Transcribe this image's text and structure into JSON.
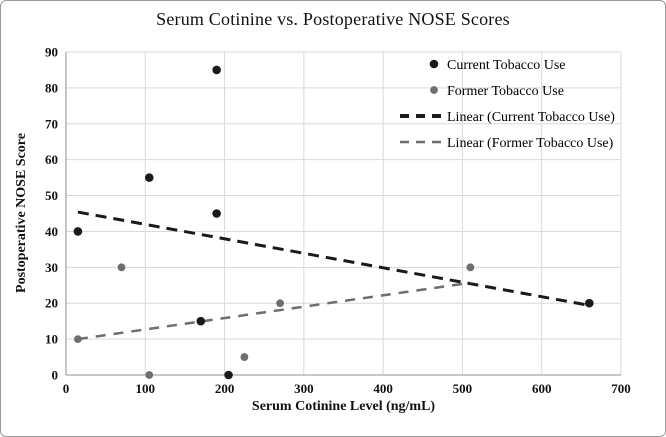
{
  "chart_data": {
    "type": "scatter",
    "title": "Serum Cotinine vs. Postoperative NOSE Scores",
    "xlabel": "Serum Cotinine Level (ng/mL)",
    "ylabel": "Postoperative NOSE Score",
    "xlim": [
      0,
      700
    ],
    "ylim": [
      0,
      90
    ],
    "xticks": [
      0,
      100,
      200,
      300,
      400,
      500,
      600,
      700
    ],
    "yticks": [
      0,
      10,
      20,
      30,
      40,
      50,
      60,
      70,
      80,
      90
    ],
    "grid": "both",
    "legend_position": "top-right-inside",
    "styles": {
      "gridline_color": "#d9d9d9",
      "axis_color": "#a6a6a6",
      "current_color": "#1a1a1a",
      "former_color": "#6e6e6e",
      "text_color": "#111111"
    },
    "series": [
      {
        "name": "Current Tobacco Use",
        "kind": "scatter",
        "color": "#1a1a1a",
        "marker": "circle",
        "points": [
          [
            15,
            40
          ],
          [
            105,
            55
          ],
          [
            170,
            15
          ],
          [
            190,
            85
          ],
          [
            190,
            45
          ],
          [
            205,
            0
          ],
          [
            660,
            20
          ]
        ]
      },
      {
        "name": "Former Tobacco Use",
        "kind": "scatter",
        "color": "#6e6e6e",
        "marker": "circle",
        "points": [
          [
            15,
            10
          ],
          [
            70,
            30
          ],
          [
            105,
            0
          ],
          [
            225,
            5
          ],
          [
            270,
            20
          ],
          [
            510,
            30
          ]
        ]
      },
      {
        "name": "Linear (Current Tobacco Use)",
        "kind": "trendline",
        "color": "#1a1a1a",
        "dashed": true,
        "points": [
          [
            15,
            45.4
          ],
          [
            660,
            19.4
          ]
        ]
      },
      {
        "name": "Linear (Former Tobacco Use)",
        "kind": "trendline",
        "color": "#6e6e6e",
        "dashed": true,
        "points": [
          [
            15,
            10
          ],
          [
            510,
            25.7
          ]
        ]
      }
    ]
  }
}
